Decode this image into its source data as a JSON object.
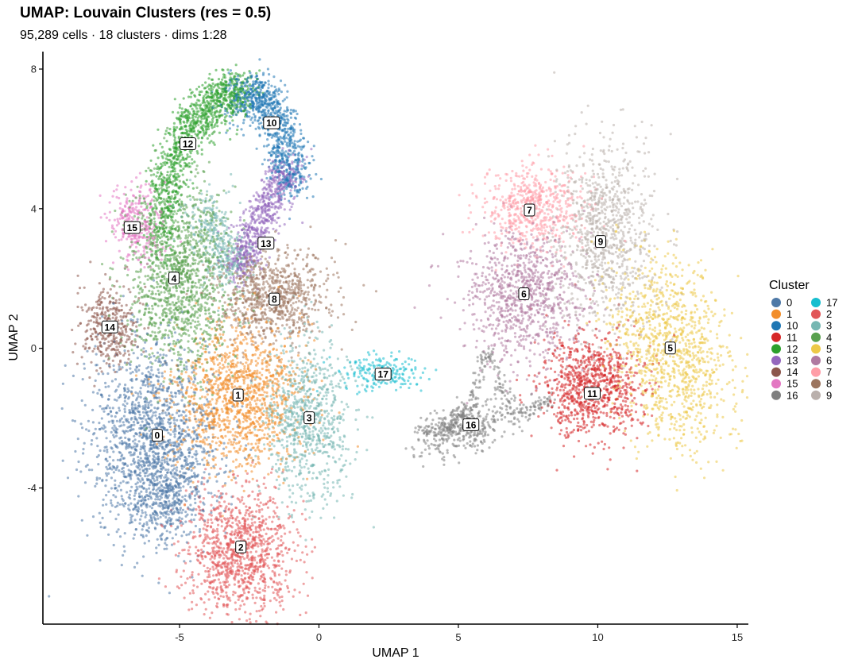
{
  "chart_data": {
    "type": "scatter",
    "title": "UMAP: Louvain Clusters (res = 0.5)",
    "subtitle": "95,289 cells · 18 clusters · dims 1:28",
    "xlabel": "UMAP 1",
    "ylabel": "UMAP 2",
    "xlim": [
      -9.9,
      15.4
    ],
    "ylim": [
      -7.9,
      8.5
    ],
    "x_ticks": [
      -5,
      0,
      5,
      10,
      15
    ],
    "y_ticks": [
      -4,
      0,
      4,
      8
    ],
    "grid": false,
    "legend": {
      "title": "Cluster",
      "position": "right",
      "columns": 2
    },
    "clusters": [
      {
        "id": "0",
        "color": "#4E79A7",
        "label_pos": [
          -5.8,
          -2.5
        ]
      },
      {
        "id": "1",
        "color": "#F28E2B",
        "label_pos": [
          -2.9,
          -1.35
        ]
      },
      {
        "id": "10",
        "color": "#1F77B4",
        "label_pos": [
          -1.7,
          6.45
        ]
      },
      {
        "id": "11",
        "color": "#D62728",
        "label_pos": [
          9.8,
          -1.3
        ]
      },
      {
        "id": "12",
        "color": "#2CA02C",
        "label_pos": [
          -4.7,
          5.85
        ]
      },
      {
        "id": "13",
        "color": "#9467BD",
        "label_pos": [
          -1.9,
          3.0
        ]
      },
      {
        "id": "14",
        "color": "#8C564B",
        "label_pos": [
          -7.5,
          0.6
        ]
      },
      {
        "id": "15",
        "color": "#E377C2",
        "label_pos": [
          -6.7,
          3.45
        ]
      },
      {
        "id": "16",
        "color": "#7F7F7F",
        "label_pos": [
          5.45,
          -2.2
        ]
      },
      {
        "id": "17",
        "color": "#17BECF",
        "label_pos": [
          2.3,
          -0.75
        ]
      },
      {
        "id": "2",
        "color": "#E15759",
        "label_pos": [
          -2.8,
          -5.7
        ]
      },
      {
        "id": "3",
        "color": "#76B7B2",
        "label_pos": [
          -0.35,
          -2.0
        ]
      },
      {
        "id": "4",
        "color": "#59A14F",
        "label_pos": [
          -5.2,
          2.0
        ]
      },
      {
        "id": "5",
        "color": "#EDC948",
        "label_pos": [
          12.6,
          0.0
        ]
      },
      {
        "id": "6",
        "color": "#B07AA1",
        "label_pos": [
          7.35,
          1.55
        ]
      },
      {
        "id": "7",
        "color": "#FF9DA7",
        "label_pos": [
          7.55,
          3.95
        ]
      },
      {
        "id": "8",
        "color": "#9C755F",
        "label_pos": [
          -1.6,
          1.4
        ]
      },
      {
        "id": "9",
        "color": "#BAB0AC",
        "label_pos": [
          10.1,
          3.05
        ]
      }
    ]
  }
}
